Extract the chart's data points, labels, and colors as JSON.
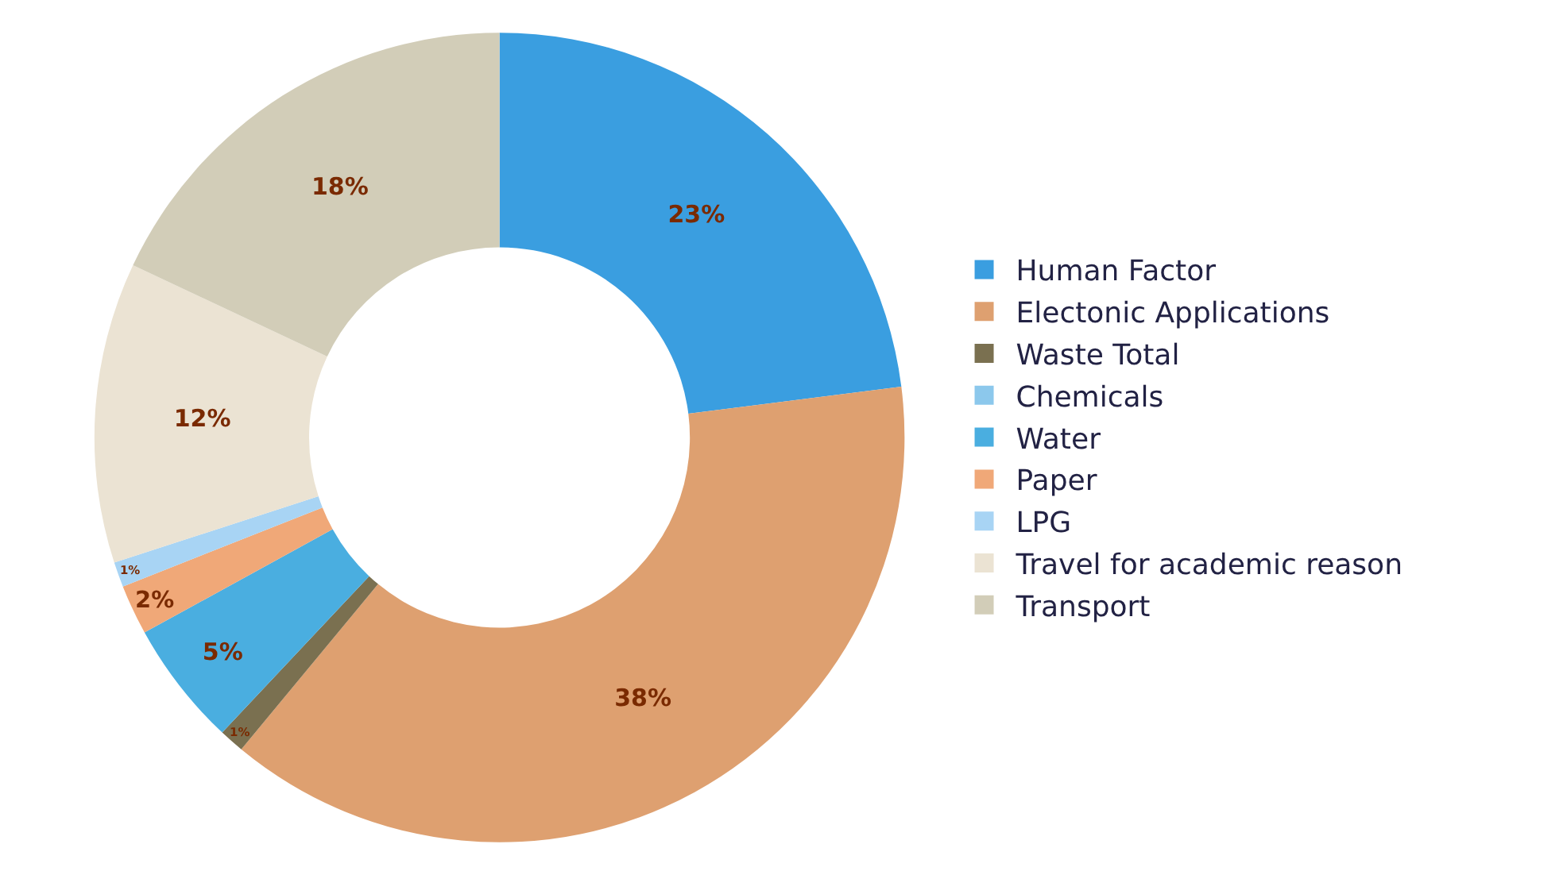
{
  "chart_data": {
    "type": "donut",
    "categories": [
      "Human Factor",
      "Electonic Applications",
      "Waste Total",
      "Chemicals",
      "Water",
      "Paper",
      "LPG",
      "Travel for academic reason",
      "Transport"
    ],
    "values": [
      23,
      38,
      1,
      0,
      5,
      2,
      1,
      12,
      18
    ],
    "value_labels": [
      "23%",
      "38%",
      "1%",
      null,
      "5%",
      "2%",
      "1%",
      "12%",
      "18%"
    ],
    "colors": [
      "#3a9ee0",
      "#dea070",
      "#7a7050",
      "#8cc8ec",
      "#4aaee0",
      "#f0a878",
      "#a8d4f4",
      "#ebe3d3",
      "#d2cdb8"
    ],
    "legend": "right"
  }
}
